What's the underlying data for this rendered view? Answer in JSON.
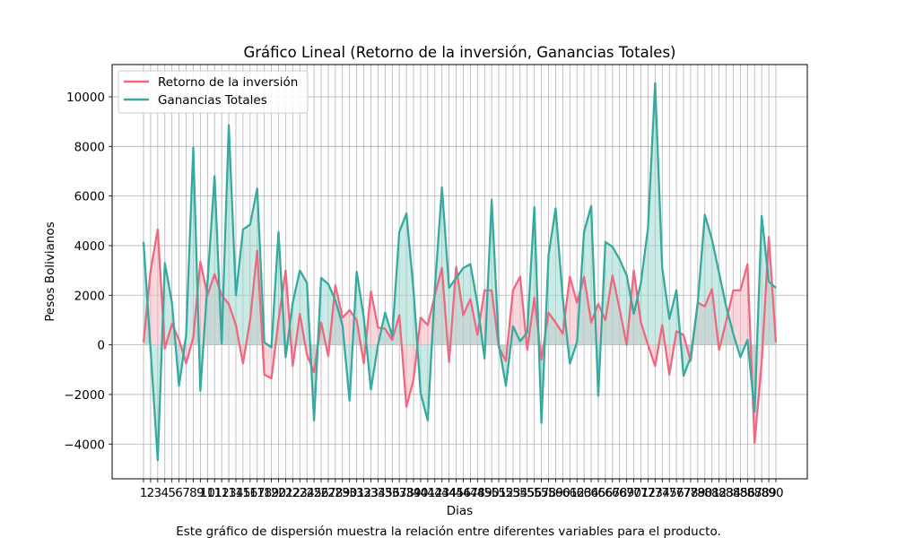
{
  "chart_data": {
    "type": "line",
    "title": "Gráfico Lineal (Retorno de la inversión, Ganancias Totales)",
    "xlabel": "Dias",
    "ylabel": "Pesos Bolivianos",
    "caption": "Este gráfico de dispersión muestra la relación entre diferentes variables para el producto.",
    "x": [
      1,
      2,
      3,
      4,
      5,
      6,
      7,
      8,
      9,
      10,
      11,
      12,
      13,
      14,
      15,
      16,
      17,
      18,
      19,
      20,
      21,
      22,
      23,
      24,
      25,
      26,
      27,
      28,
      29,
      30,
      31,
      32,
      33,
      34,
      35,
      36,
      37,
      38,
      39,
      40,
      41,
      42,
      43,
      44,
      45,
      46,
      47,
      48,
      49,
      50,
      51,
      52,
      53,
      54,
      55,
      56,
      57,
      58,
      59,
      60,
      61,
      62,
      63,
      64,
      65,
      66,
      67,
      68,
      69,
      70,
      71,
      72,
      73,
      74,
      75,
      76,
      77,
      78,
      79,
      80,
      81,
      82,
      83,
      84,
      85,
      86,
      87,
      88,
      89,
      90
    ],
    "ylim": [
      -5400,
      11300
    ],
    "yticks": [
      -4000,
      -2000,
      0,
      2000,
      4000,
      6000,
      8000,
      10000
    ],
    "grid": true,
    "legend_position": "top-left",
    "series": [
      {
        "name": "Retorno de la inversión",
        "color": "#f0687f",
        "fill": "#f4b6c1",
        "values": [
          100,
          3000,
          4650,
          -150,
          850,
          200,
          -750,
          300,
          3350,
          2000,
          2850,
          2000,
          1650,
          800,
          -750,
          1000,
          3800,
          -1200,
          -1350,
          1000,
          3000,
          -850,
          1250,
          -400,
          -1100,
          900,
          -450,
          2400,
          1100,
          1400,
          1000,
          -750,
          2150,
          700,
          650,
          200,
          1200,
          -2500,
          -1400,
          1100,
          800,
          2000,
          3100,
          -700,
          3150,
          1200,
          1850,
          400,
          2200,
          2200,
          -100,
          -650,
          2200,
          2750,
          -200,
          1900,
          -600,
          1300,
          900,
          450,
          2750,
          1700,
          2750,
          900,
          1650,
          1000,
          2800,
          1450,
          0,
          3000,
          900,
          0,
          -850,
          800,
          -1200,
          550,
          400,
          -650,
          1700,
          1550,
          2250,
          -200,
          950,
          2200,
          2200,
          3250,
          -3950,
          -700,
          4350,
          100
        ]
      },
      {
        "name": "Ganancias Totales",
        "color": "#36aaa0",
        "fill": "#9ed8cf",
        "values": [
          4150,
          -200,
          -4650,
          3300,
          1700,
          -1650,
          400,
          7950,
          -1850,
          2500,
          6800,
          50,
          8850,
          2000,
          4650,
          4850,
          6300,
          100,
          -100,
          4550,
          -500,
          1700,
          3000,
          2500,
          -3050,
          2700,
          2450,
          1800,
          800,
          -2250,
          2950,
          1100,
          -1800,
          0,
          1300,
          350,
          4550,
          5300,
          2200,
          -1950,
          -3050,
          2250,
          6350,
          2300,
          2700,
          3100,
          3250,
          1650,
          -550,
          5850,
          0,
          -1650,
          750,
          150,
          500,
          5550,
          -3150,
          3600,
          5500,
          1900,
          -750,
          100,
          4550,
          5600,
          -2050,
          4150,
          3950,
          3450,
          2800,
          1250,
          2500,
          4700,
          10550,
          3100,
          1050,
          2200,
          -1250,
          -500,
          1700,
          5250,
          4250,
          2900,
          1550,
          450,
          -500,
          200,
          -2700,
          5200,
          2550,
          2300
        ]
      }
    ]
  }
}
